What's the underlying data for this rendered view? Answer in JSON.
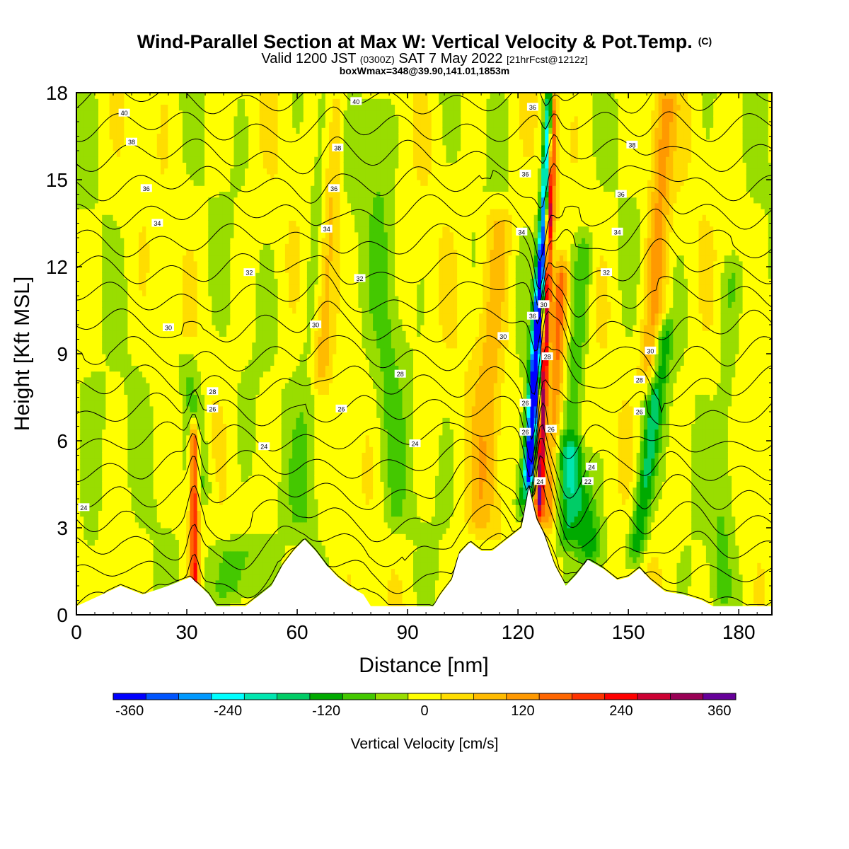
{
  "title": {
    "main": "Wind-Parallel Section at Max W: Vertical Velocity & Pot.Temp.",
    "copyright": "(C)",
    "valid_prefix": "Valid 1200 JST",
    "valid_utc": "(0300Z)",
    "valid_date": "SAT 7 May 2022",
    "forecast": "[21hrFcst@1212z]",
    "boxmax": "boxWmax=348@39.90,141.01,1853m"
  },
  "colors": {
    "bins": [
      "#0000ff",
      "#0055ff",
      "#0099ff",
      "#00ffff",
      "#00e6b0",
      "#00cc66",
      "#00aa00",
      "#44c800",
      "#99dd00",
      "#ffff00",
      "#ffdd00",
      "#ffbb00",
      "#ff9900",
      "#ff6600",
      "#ff3300",
      "#ff0000",
      "#cc0033",
      "#990055",
      "#660099"
    ],
    "terrain": "#ffffff",
    "contour": "#000000"
  },
  "chart_data": {
    "type": "heatmap",
    "xlabel": "Distance [nm]",
    "ylabel": "Height [Kft MSL]",
    "xlim": [
      0,
      189
    ],
    "ylim": [
      0,
      18
    ],
    "xticks": [
      0,
      30,
      60,
      90,
      120,
      150,
      180
    ],
    "yticks": [
      0,
      3,
      6,
      9,
      12,
      15,
      18
    ],
    "colorbar": {
      "label": "Vertical Velocity [cm/s]",
      "min": -360,
      "max": 360,
      "step": 40,
      "tick_labels": [
        "-360",
        "-240",
        "-120",
        "0",
        "120",
        "240",
        "360"
      ]
    },
    "terrain_kft": [
      [
        0,
        0.3
      ],
      [
        7,
        0.7
      ],
      [
        12,
        1.0
      ],
      [
        18,
        0.7
      ],
      [
        25,
        1.0
      ],
      [
        31,
        1.3
      ],
      [
        36,
        0.7
      ],
      [
        38,
        0.3
      ],
      [
        46,
        0.3
      ],
      [
        50,
        0.7
      ],
      [
        53,
        1.0
      ],
      [
        56,
        1.7
      ],
      [
        59,
        2.2
      ],
      [
        62,
        2.6
      ],
      [
        65,
        2.2
      ],
      [
        68,
        1.7
      ],
      [
        71,
        1.3
      ],
      [
        74,
        1.0
      ],
      [
        78,
        0.7
      ],
      [
        80,
        0.3
      ],
      [
        97,
        0.3
      ],
      [
        99,
        0.7
      ],
      [
        102,
        1.2
      ],
      [
        104,
        2.1
      ],
      [
        107,
        2.5
      ],
      [
        110,
        2.2
      ],
      [
        113,
        2.2
      ],
      [
        116,
        2.5
      ],
      [
        119,
        2.8
      ],
      [
        121,
        3.0
      ],
      [
        123,
        4.4
      ],
      [
        125,
        3.3
      ],
      [
        127,
        2.8
      ],
      [
        130,
        1.7
      ],
      [
        133,
        1.0
      ],
      [
        136,
        1.4
      ],
      [
        139,
        1.9
      ],
      [
        143,
        1.6
      ],
      [
        147,
        1.2
      ],
      [
        150,
        1.3
      ],
      [
        153,
        1.6
      ],
      [
        156,
        1.2
      ],
      [
        160,
        0.8
      ],
      [
        165,
        0.7
      ],
      [
        170,
        0.5
      ],
      [
        173,
        0.3
      ],
      [
        189,
        0.3
      ]
    ],
    "w_features": [
      {
        "x": 32,
        "w": 240,
        "width": 1.2,
        "z0": 0.5,
        "z1": 6.5,
        "slant": 0
      },
      {
        "x": 35,
        "w": -70,
        "width": 3,
        "z0": 4,
        "z1": 9,
        "slant": -5
      },
      {
        "x": 44,
        "w": -90,
        "width": 7,
        "z0": 0.5,
        "z1": 2.5,
        "slant": 0
      },
      {
        "x": 61,
        "w": -50,
        "width": 4,
        "z0": 3,
        "z1": 18,
        "slant": 8
      },
      {
        "x": 66,
        "w": 110,
        "width": 2.5,
        "z0": 8,
        "z1": 18,
        "slant": 5
      },
      {
        "x": 87,
        "w": -50,
        "width": 4,
        "z0": 3,
        "z1": 18,
        "slant": -6
      },
      {
        "x": 110,
        "w": 80,
        "width": 4,
        "z0": 3,
        "z1": 14,
        "slant": 5
      },
      {
        "x": 121,
        "w": -120,
        "width": 2,
        "z0": 3.5,
        "z1": 13,
        "slant": 7
      },
      {
        "x": 123,
        "w": -340,
        "width": 1.3,
        "z0": 4.5,
        "z1": 18,
        "slant": 6
      },
      {
        "x": 125.7,
        "w": 348,
        "width": 1.1,
        "z0": 3.5,
        "z1": 18,
        "slant": 4
      },
      {
        "x": 128,
        "w": 150,
        "width": 2,
        "z0": 3,
        "z1": 12,
        "slant": 4
      },
      {
        "x": 133,
        "w": -90,
        "width": 2.5,
        "z0": 2.5,
        "z1": 13,
        "slant": 5
      },
      {
        "x": 140,
        "w": -120,
        "width": 4,
        "z0": 2,
        "z1": 6,
        "slant": -6
      },
      {
        "x": 152,
        "w": -140,
        "width": 2.5,
        "z0": 2,
        "z1": 10,
        "slant": 8
      },
      {
        "x": 156,
        "w": 120,
        "width": 3,
        "z0": 8,
        "z1": 18,
        "slant": 4
      },
      {
        "x": 175,
        "w": -50,
        "width": 3,
        "z0": 0.5,
        "z1": 12,
        "slant": 3
      },
      {
        "x": 4,
        "w": -40,
        "width": 4,
        "z0": 0.5,
        "z1": 8,
        "slant": 0
      }
    ],
    "theta_range_C": [
      22,
      40
    ],
    "theta_contour_step_C": 1,
    "theta_labels": [
      {
        "text": "40",
        "x": 13,
        "y": 17.3
      },
      {
        "text": "38",
        "x": 15,
        "y": 16.3
      },
      {
        "text": "36",
        "x": 19,
        "y": 14.7
      },
      {
        "text": "34",
        "x": 22,
        "y": 13.5
      },
      {
        "text": "32",
        "x": 47,
        "y": 11.8
      },
      {
        "text": "30",
        "x": 25,
        "y": 9.9
      },
      {
        "text": "28",
        "x": 37,
        "y": 7.7
      },
      {
        "text": "26",
        "x": 37,
        "y": 7.1
      },
      {
        "text": "24",
        "x": 51,
        "y": 5.8
      },
      {
        "text": "24",
        "x": 2,
        "y": 3.7
      },
      {
        "text": "40",
        "x": 76,
        "y": 17.7
      },
      {
        "text": "38",
        "x": 71,
        "y": 16.1
      },
      {
        "text": "36",
        "x": 70,
        "y": 14.7
      },
      {
        "text": "34",
        "x": 68,
        "y": 13.3
      },
      {
        "text": "32",
        "x": 77,
        "y": 11.6
      },
      {
        "text": "30",
        "x": 65,
        "y": 10.0
      },
      {
        "text": "28",
        "x": 88,
        "y": 8.3
      },
      {
        "text": "26",
        "x": 72,
        "y": 7.1
      },
      {
        "text": "24",
        "x": 92,
        "y": 5.9
      },
      {
        "text": "36",
        "x": 124,
        "y": 17.5
      },
      {
        "text": "36",
        "x": 122,
        "y": 15.2
      },
      {
        "text": "34",
        "x": 121,
        "y": 13.2
      },
      {
        "text": "30",
        "x": 127,
        "y": 10.7
      },
      {
        "text": "36",
        "x": 124,
        "y": 10.3
      },
      {
        "text": "30",
        "x": 116,
        "y": 9.6
      },
      {
        "text": "28",
        "x": 128,
        "y": 8.9
      },
      {
        "text": "26",
        "x": 122,
        "y": 7.3
      },
      {
        "text": "26",
        "x": 122,
        "y": 6.3
      },
      {
        "text": "26",
        "x": 129,
        "y": 6.4
      },
      {
        "text": "24",
        "x": 126,
        "y": 4.6
      },
      {
        "text": "24",
        "x": 140,
        "y": 5.1
      },
      {
        "text": "22",
        "x": 139,
        "y": 4.6
      },
      {
        "text": "38",
        "x": 151,
        "y": 16.2
      },
      {
        "text": "36",
        "x": 148,
        "y": 14.5
      },
      {
        "text": "34",
        "x": 147,
        "y": 13.2
      },
      {
        "text": "32",
        "x": 144,
        "y": 11.8
      },
      {
        "text": "30",
        "x": 156,
        "y": 9.1
      },
      {
        "text": "28",
        "x": 153,
        "y": 8.1
      },
      {
        "text": "26",
        "x": 153,
        "y": 7.0
      }
    ]
  }
}
